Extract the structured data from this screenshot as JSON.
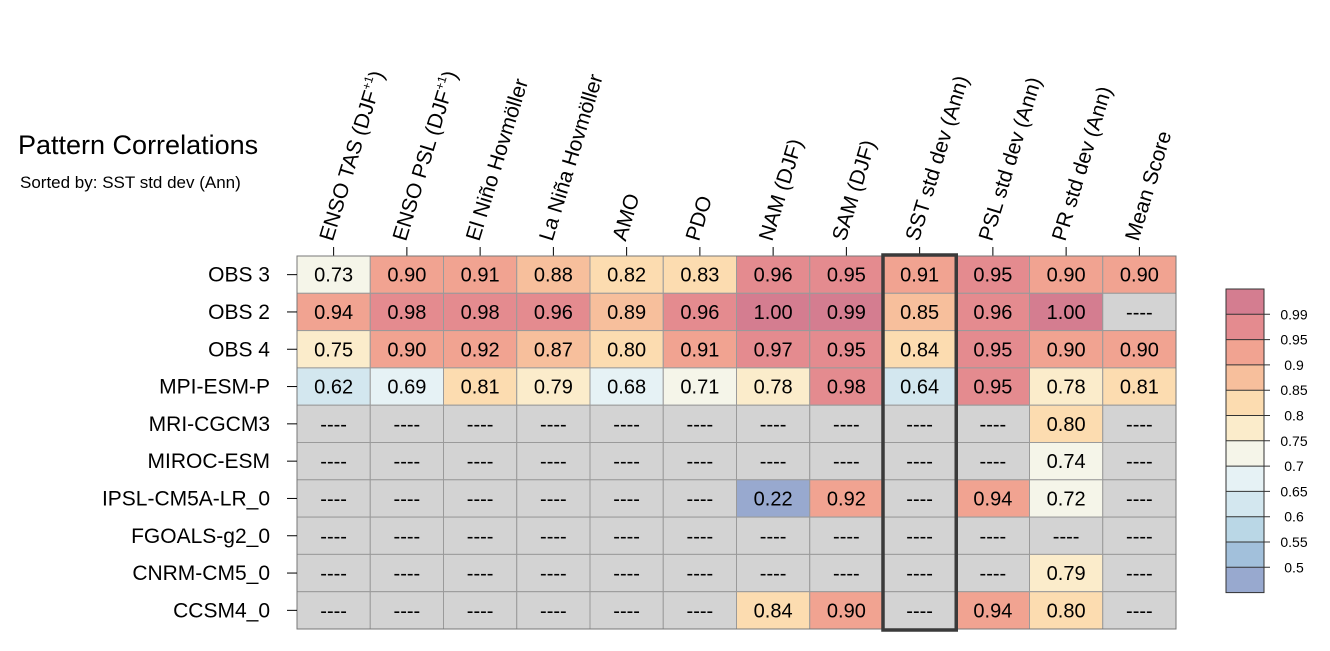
{
  "chart_data": {
    "type": "heatmap",
    "title": "Pattern Correlations",
    "subtitle": "Sorted by: SST std dev (Ann)",
    "columns": [
      {
        "main": "ENSO TAS (DJF",
        "sup": "+1",
        "tail": ")"
      },
      {
        "main": "ENSO PSL (DJF",
        "sup": "+1",
        "tail": ")"
      },
      {
        "main": "El Niño Hovmöller",
        "sup": "",
        "tail": ""
      },
      {
        "main": "La Niña Hovmöller",
        "sup": "",
        "tail": ""
      },
      {
        "main": "AMO",
        "sup": "",
        "tail": ""
      },
      {
        "main": "PDO",
        "sup": "",
        "tail": ""
      },
      {
        "main": "NAM (DJF)",
        "sup": "",
        "tail": ""
      },
      {
        "main": "SAM (DJF)",
        "sup": "",
        "tail": ""
      },
      {
        "main": "SST std dev (Ann)",
        "sup": "",
        "tail": ""
      },
      {
        "main": "PSL std dev (Ann)",
        "sup": "",
        "tail": ""
      },
      {
        "main": "PR std dev (Ann)",
        "sup": "",
        "tail": ""
      },
      {
        "main": "Mean Score",
        "sup": "",
        "tail": ""
      }
    ],
    "rows": [
      "OBS 3",
      "OBS 2",
      "OBS 4",
      "MPI-ESM-P",
      "MRI-CGCM3",
      "MIROC-ESM",
      "IPSL-CM5A-LR_0",
      "FGOALS-g2_0",
      "CNRM-CM5_0",
      "CCSM4_0"
    ],
    "values": [
      [
        "0.73",
        "0.90",
        "0.91",
        "0.88",
        "0.82",
        "0.83",
        "0.96",
        "0.95",
        "0.91",
        "0.95",
        "0.90",
        "0.90"
      ],
      [
        "0.94",
        "0.98",
        "0.98",
        "0.96",
        "0.89",
        "0.96",
        "1.00",
        "0.99",
        "0.85",
        "0.96",
        "1.00",
        "----"
      ],
      [
        "0.75",
        "0.90",
        "0.92",
        "0.87",
        "0.80",
        "0.91",
        "0.97",
        "0.95",
        "0.84",
        "0.95",
        "0.90",
        "0.90"
      ],
      [
        "0.62",
        "0.69",
        "0.81",
        "0.79",
        "0.68",
        "0.71",
        "0.78",
        "0.98",
        "0.64",
        "0.95",
        "0.78",
        "0.81"
      ],
      [
        "----",
        "----",
        "----",
        "----",
        "----",
        "----",
        "----",
        "----",
        "----",
        "----",
        "0.80",
        "----"
      ],
      [
        "----",
        "----",
        "----",
        "----",
        "----",
        "----",
        "----",
        "----",
        "----",
        "----",
        "0.74",
        "----"
      ],
      [
        "----",
        "----",
        "----",
        "----",
        "----",
        "----",
        "0.22",
        "0.92",
        "----",
        "0.94",
        "0.72",
        "----"
      ],
      [
        "----",
        "----",
        "----",
        "----",
        "----",
        "----",
        "----",
        "----",
        "----",
        "----",
        "----",
        "----"
      ],
      [
        "----",
        "----",
        "----",
        "----",
        "----",
        "----",
        "----",
        "----",
        "----",
        "----",
        "0.79",
        "----"
      ],
      [
        "----",
        "----",
        "----",
        "----",
        "----",
        "----",
        "0.84",
        "0.90",
        "----",
        "0.94",
        "0.80",
        "----"
      ]
    ],
    "missing_value": "----",
    "sorted_column": 8,
    "colorbar": {
      "labels": [
        "0.99",
        "0.95",
        "0.9",
        "0.85",
        "0.8",
        "0.75",
        "0.7",
        "0.65",
        "0.6",
        "0.55",
        "0.5"
      ],
      "thresholds": [
        0.5,
        0.55,
        0.6,
        0.65,
        0.7,
        0.75,
        0.8,
        0.85,
        0.9,
        0.95,
        0.99
      ],
      "colors": [
        "#98a9cf",
        "#a2c0db",
        "#bad7e6",
        "#d3e7ef",
        "#e6f2f5",
        "#f5f5e9",
        "#fbeccb",
        "#fcdcb0",
        "#f7bf9c",
        "#f1a391",
        "#e48b8f",
        "#d47d90"
      ]
    },
    "missing_color": "#d3d3d3"
  }
}
